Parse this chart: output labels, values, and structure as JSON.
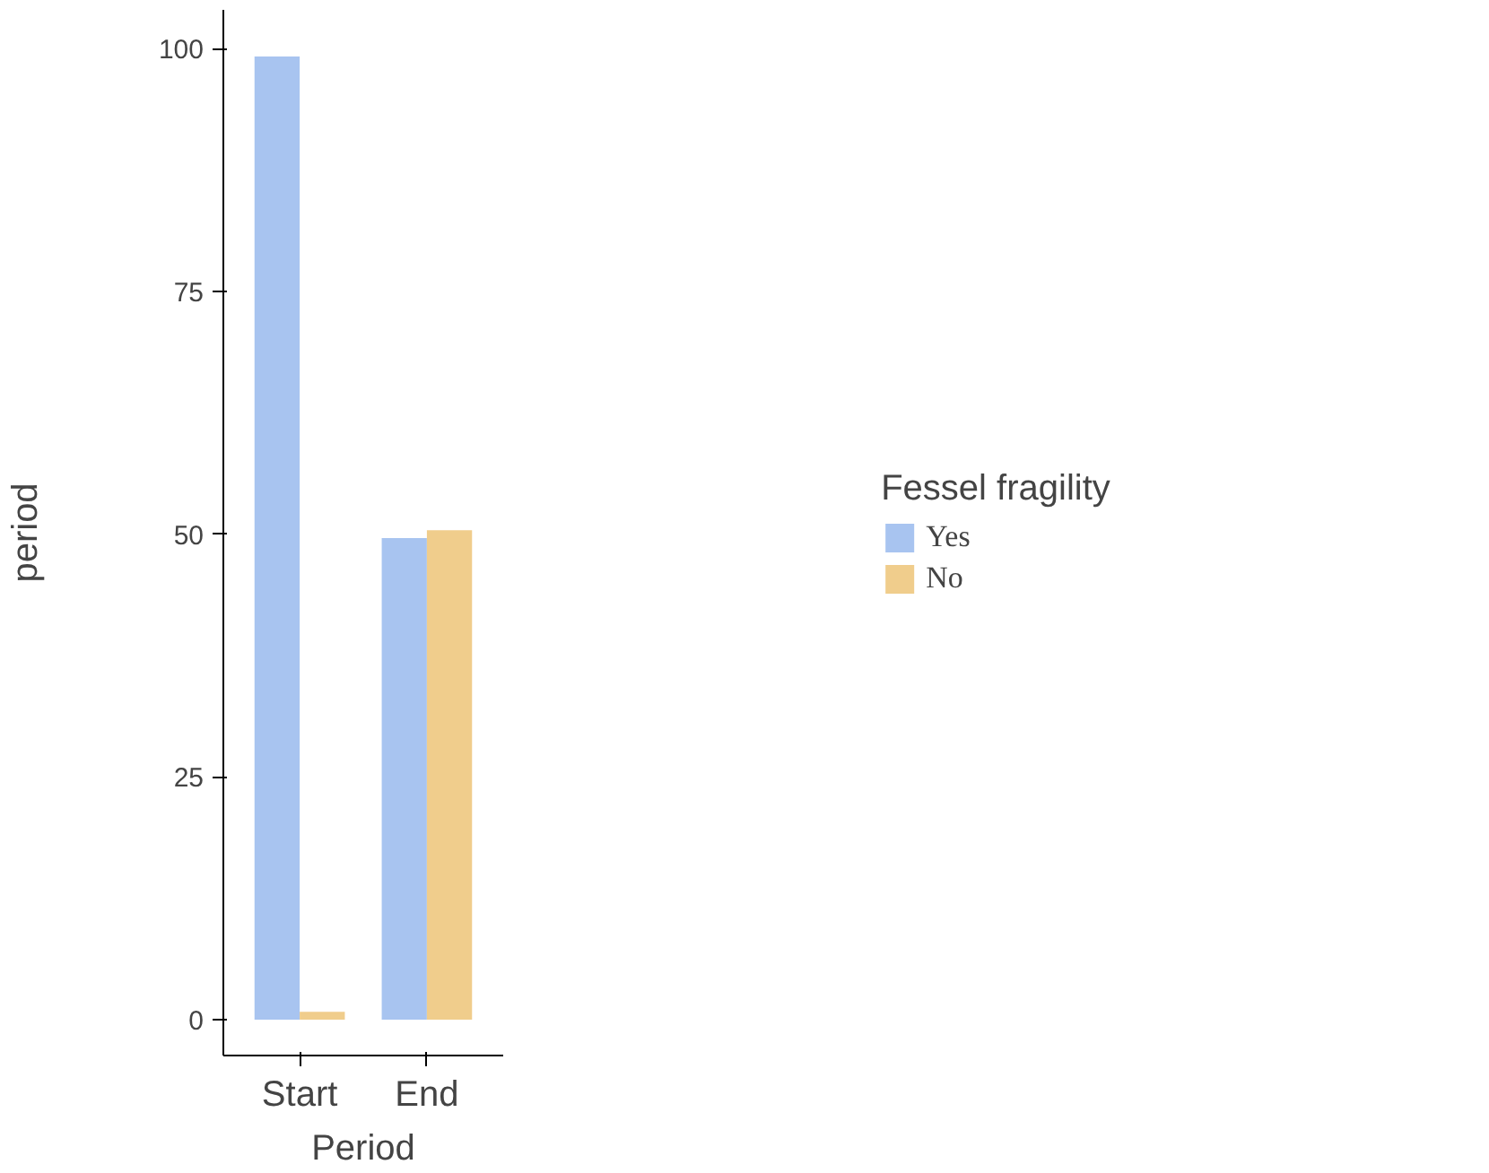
{
  "chart_data": {
    "type": "bar",
    "xlabel": "Period",
    "ylabel": "period",
    "legend_title": "Fessel fragility",
    "categories": [
      "Start",
      "End"
    ],
    "series": [
      {
        "name": "Yes",
        "color": "#a8c4f0",
        "values": [
          99.2,
          49.6
        ]
      },
      {
        "name": "No",
        "color": "#f0cd8c",
        "values": [
          0.8,
          50.4
        ]
      }
    ],
    "ylim": [
      -3.7,
      104
    ],
    "yticks": [
      0,
      25,
      50,
      75,
      100
    ],
    "grid": false,
    "legend": "right"
  }
}
